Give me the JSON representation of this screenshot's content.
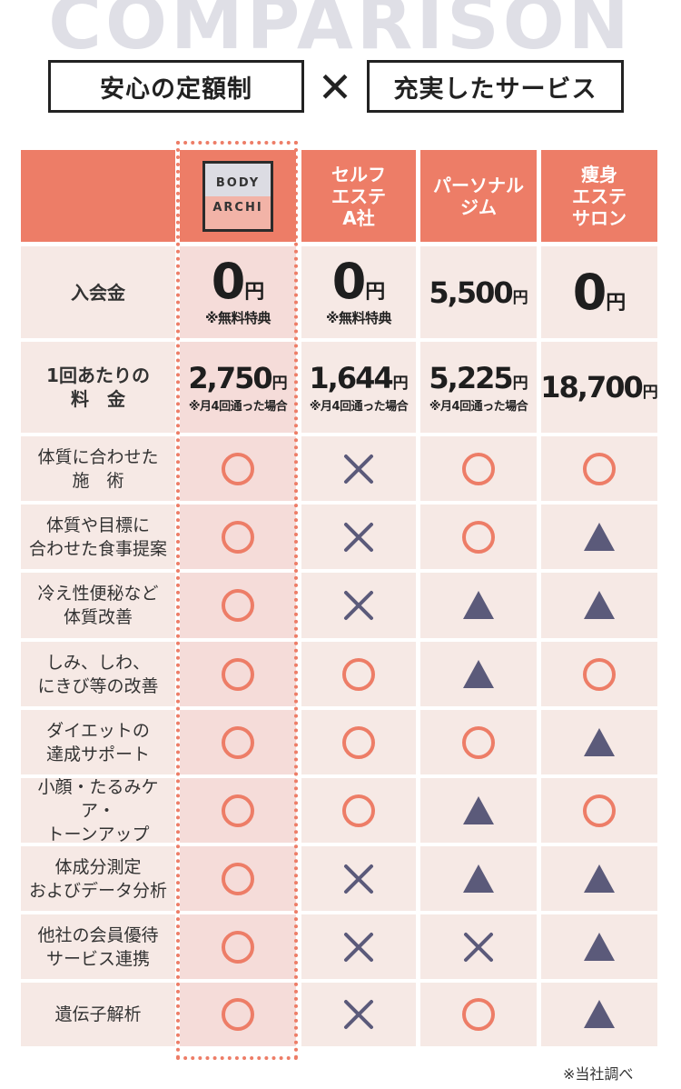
{
  "heading": {
    "bg_title": "COMPARISON",
    "left_tag": "安心の定額制",
    "times": "✕",
    "right_tag": "充実したサービス"
  },
  "columns": [
    {
      "logo_top": "BODY",
      "logo_bottom": "ARCHI"
    },
    {
      "lines": [
        "セルフ",
        "エステ",
        "A社"
      ]
    },
    {
      "lines": [
        "パーソナル",
        "ジム"
      ]
    },
    {
      "lines": [
        "痩身",
        "エステ",
        "サロン"
      ]
    }
  ],
  "price_rows": [
    {
      "label": [
        "入会金"
      ],
      "cells": [
        {
          "num": "0",
          "yen": "円",
          "note": "※無料特典"
        },
        {
          "num": "0",
          "yen": "円",
          "note": "※無料特典"
        },
        {
          "num": "5,500",
          "yen": "円",
          "note": ""
        },
        {
          "num": "0",
          "yen": "円",
          "note": ""
        }
      ]
    },
    {
      "label": [
        "1回あたりの",
        "料　金"
      ],
      "cells": [
        {
          "num": "2,750",
          "yen": "円",
          "note": "※月4回通った場合"
        },
        {
          "num": "1,644",
          "yen": "円",
          "note": "※月4回通った場合"
        },
        {
          "num": "5,225",
          "yen": "円",
          "note": "※月4回通った場合"
        },
        {
          "num": "18,700",
          "yen": "円",
          "note": ""
        }
      ]
    }
  ],
  "feature_rows": [
    {
      "label": [
        "体質に合わせた",
        "施　術"
      ],
      "marks": [
        "circle",
        "cross",
        "circle",
        "circle"
      ]
    },
    {
      "label": [
        "体質や目標に",
        "合わせた食事提案"
      ],
      "marks": [
        "circle",
        "cross",
        "circle",
        "triangle"
      ]
    },
    {
      "label": [
        "冷え性便秘など",
        "体質改善"
      ],
      "marks": [
        "circle",
        "cross",
        "triangle",
        "triangle"
      ]
    },
    {
      "label": [
        "しみ、しわ、",
        "にきび等の改善"
      ],
      "marks": [
        "circle",
        "circle",
        "triangle",
        "circle"
      ]
    },
    {
      "label": [
        "ダイエットの",
        "達成サポート"
      ],
      "marks": [
        "circle",
        "circle",
        "circle",
        "triangle"
      ]
    },
    {
      "label": [
        "小顔・たるみケア・",
        "トーンアップ"
      ],
      "marks": [
        "circle",
        "circle",
        "triangle",
        "circle"
      ]
    },
    {
      "label": [
        "体成分測定",
        "およびデータ分析"
      ],
      "marks": [
        "circle",
        "cross",
        "triangle",
        "triangle"
      ]
    },
    {
      "label": [
        "他社の会員優待",
        "サービス連携"
      ],
      "marks": [
        "circle",
        "cross",
        "cross",
        "triangle"
      ]
    },
    {
      "label": [
        "遺伝子解析"
      ],
      "marks": [
        "circle",
        "cross",
        "circle",
        "triangle"
      ]
    }
  ],
  "mark_icons": {
    "circle": "circle-icon",
    "cross": "cross-icon",
    "triangle": "triangle-icon"
  },
  "colors": {
    "accent": "#ed7d67",
    "cross": "#5b5a7a",
    "cell": "#f6e9e5",
    "highlight": "#f5dcd9"
  },
  "footnote": "※当社調べ"
}
